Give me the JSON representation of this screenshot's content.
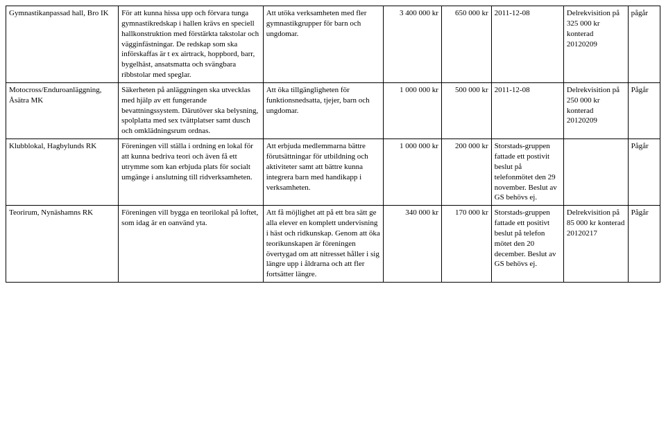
{
  "rows": [
    {
      "name": "Gymnastikanpassad hall, Bro IK",
      "desc": "För att kunna hissa upp och förvara tunga gymnastikredskap i hallen krävs en speciell hallkonstruktion med förstärkta takstolar och vägginfästningar. De redskap som ska införskaffas är t ex airtrack, hoppbord, barr, bygelhäst, ansatsmatta och svängbara ribbstolar med speglar.",
      "purpose": "Att utöka verksamheten med fler gymnastikgrupper för barn och ungdomar.",
      "amount1": "3 400 000 kr",
      "amount2": "650 000 kr",
      "date": "2011-12-08",
      "decision": "Delrekvisition på 325 000 kr konterad 20120209",
      "status": "pågår"
    },
    {
      "name": "Motocross/Enduroanläggning, Åsätra MK",
      "desc": "Säkerheten på anläggningen ska utvecklas med hjälp av ett fungerande bevattningssystem. Därutöver ska belysning, spolplatta med sex tvättplatser samt dusch och omklädningsrum ordnas.",
      "purpose": "Att öka tillgängligheten för funktionsnedsatta, tjejer, barn och ungdomar.",
      "amount1": "1 000 000 kr",
      "amount2": "500 000 kr",
      "date": "2011-12-08",
      "decision": "Delrekvisition på 250 000 kr konterad 20120209",
      "status": "Pågår"
    },
    {
      "name": "Klubblokal, Hagbylunds RK",
      "desc": "Föreningen vill ställa i ordning en lokal för att kunna bedriva teori och även få ett utrymme som kan erbjuda plats för socialt umgänge i anslutning till ridverksamheten.",
      "purpose": "Att erbjuda medlemmarna bättre förutsättningar för utbildning och aktiviteter samt att bättre kunna integrera barn med handikapp i verksamheten.",
      "amount1": "1 000 000 kr",
      "amount2": "200 000 kr",
      "date": "Storstads-gruppen fattade ett postivit beslut på telefonmötet den 29 november. Beslut av GS behövs ej.",
      "decision": "",
      "status": "Pågår"
    },
    {
      "name": "Teorirum, Nynäshamns RK",
      "desc": "Föreningen vill bygga en teorilokal på loftet, som idag är en oanvänd yta.",
      "purpose": "Att få möjlighet att på ett bra sätt ge alla elever en komplett undervisning i häst och ridkunskap. Genom att öka teorikunskapen är föreningen övertygad om att nitresset håller i sig längre upp i åldrarna och att fler fortsätter längre.",
      "amount1": "340 000 kr",
      "amount2": "170 000 kr",
      "date": "Storstads-gruppen fattade ett positivt beslut på telefon mötet den 20 december. Beslut av GS behövs ej.",
      "decision": "Delrekvisition på 85 000 kr konterad 20120217",
      "status": "Pågår"
    }
  ]
}
